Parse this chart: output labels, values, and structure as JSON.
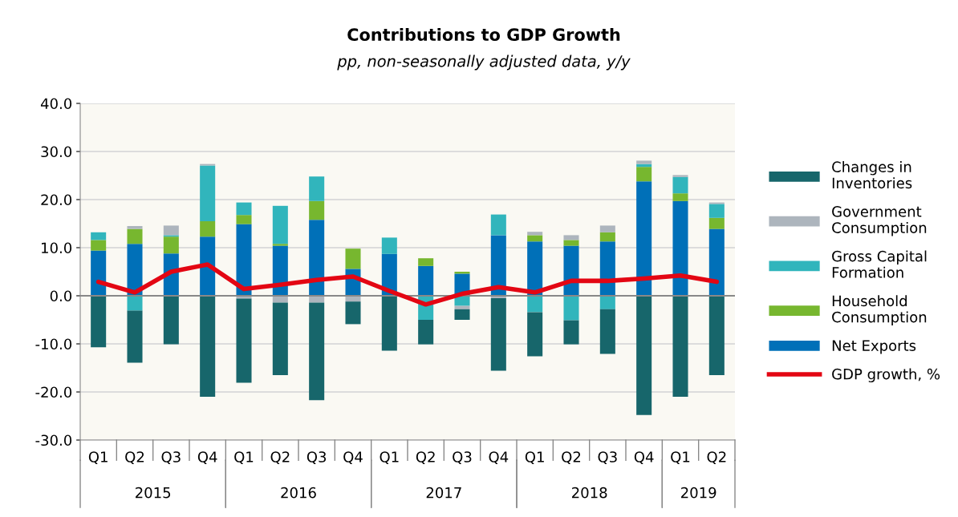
{
  "chart_data": {
    "type": "bar",
    "stacked": true,
    "title": "Contributions to GDP Growth",
    "subtitle": "pp, non-seasonally adjusted data, y/y",
    "categories": [
      "Q1",
      "Q2",
      "Q3",
      "Q4",
      "Q1",
      "Q2",
      "Q3",
      "Q4",
      "Q1",
      "Q2",
      "Q3",
      "Q4",
      "Q1",
      "Q2",
      "Q3",
      "Q4",
      "Q1",
      "Q2"
    ],
    "annotations": [
      "2015",
      "2016",
      "2017",
      "2018",
      "2019"
    ],
    "series": [
      {
        "name": "Net Exports",
        "color": "#0070b8",
        "values": [
          9.4,
          10.8,
          8.8,
          12.3,
          14.9,
          10.4,
          15.8,
          5.6,
          8.7,
          6.2,
          4.6,
          12.6,
          11.3,
          10.4,
          11.3,
          23.8,
          19.7,
          13.9
        ]
      },
      {
        "name": "Household Consumption",
        "color": "#77b72f",
        "values": [
          2.2,
          3.1,
          3.5,
          3.2,
          1.9,
          0.4,
          3.9,
          4.2,
          0,
          1.6,
          0.4,
          0,
          1.3,
          1.2,
          1.9,
          3.0,
          1.6,
          2.3
        ]
      },
      {
        "name": "Gross Capital Formation",
        "color": "#31b5bc",
        "values": [
          1.6,
          -3.1,
          0.3,
          11.6,
          2.6,
          7.9,
          5.1,
          0,
          3.4,
          -5.0,
          -2.1,
          4.3,
          -3.4,
          -5.1,
          -2.8,
          0.6,
          3.4,
          2.9
        ]
      },
      {
        "name": "Government Consumption",
        "color": "#adb5bd",
        "values": [
          0,
          0.6,
          2.0,
          0.3,
          -0.6,
          -1.4,
          -1.4,
          -1.2,
          0,
          0,
          -0.7,
          -0.5,
          0.7,
          1.0,
          1.4,
          0.7,
          0.4,
          0.3
        ]
      },
      {
        "name": "Changes in Inventories",
        "color": "#17666b",
        "values": [
          -10.7,
          -10.8,
          -10.1,
          -21.0,
          -17.5,
          -15.1,
          -20.3,
          -4.7,
          -11.4,
          -5.1,
          -2.2,
          -15.1,
          -9.2,
          -5.0,
          -9.3,
          -24.8,
          -21.0,
          -16.5
        ]
      },
      {
        "name": "GDP growth, %",
        "type": "line",
        "color": "#e30613",
        "values": [
          2.9,
          0.7,
          5.0,
          6.5,
          1.4,
          2.3,
          3.3,
          4.0,
          1.0,
          -1.8,
          0.4,
          1.8,
          0.7,
          3.1,
          3.1,
          3.6,
          4.2,
          2.9
        ]
      }
    ],
    "ylim": [
      -30,
      40
    ],
    "yticks": [
      {
        "value": -30,
        "label": "-30.0"
      },
      {
        "value": -20,
        "label": "-20.0"
      },
      {
        "value": -10,
        "label": "-10.0"
      },
      {
        "value": 0,
        "label": "0.0"
      },
      {
        "value": 10,
        "label": "10.0"
      },
      {
        "value": 20,
        "label": "20.0"
      },
      {
        "value": 30,
        "label": "30.0"
      },
      {
        "value": 40,
        "label": "40.0"
      }
    ],
    "grid": "y",
    "legend": "right"
  }
}
